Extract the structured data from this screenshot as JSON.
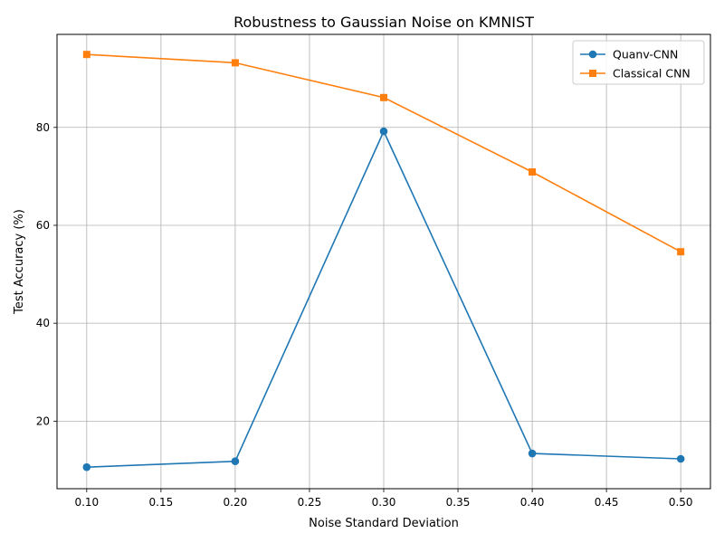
{
  "chart_data": {
    "type": "line",
    "title": "Robustness to Gaussian Noise on KMNIST",
    "xlabel": "Noise Standard Deviation",
    "ylabel": "Test Accuracy (%)",
    "x": [
      0.1,
      0.2,
      0.3,
      0.4,
      0.5
    ],
    "xlim": [
      0.08,
      0.52
    ],
    "ylim": [
      6.2,
      99.0
    ],
    "xticks": [
      0.1,
      0.15,
      0.2,
      0.25,
      0.3,
      0.35,
      0.4,
      0.45,
      0.5
    ],
    "xtick_labels": [
      "0.10",
      "0.15",
      "0.20",
      "0.25",
      "0.30",
      "0.35",
      "0.40",
      "0.45",
      "0.50"
    ],
    "yticks": [
      20,
      40,
      60,
      80
    ],
    "ytick_labels": [
      "20",
      "40",
      "60",
      "80"
    ],
    "grid": true,
    "legend_position": "top-right",
    "series": [
      {
        "name": "Quanv-CNN",
        "color": "#1f77b4",
        "marker": "circle",
        "values": [
          10.6,
          11.8,
          79.2,
          13.4,
          12.3
        ]
      },
      {
        "name": "Classical CNN",
        "color": "#ff7f0e",
        "marker": "square",
        "values": [
          94.9,
          93.2,
          86.1,
          70.9,
          54.6
        ]
      }
    ]
  }
}
